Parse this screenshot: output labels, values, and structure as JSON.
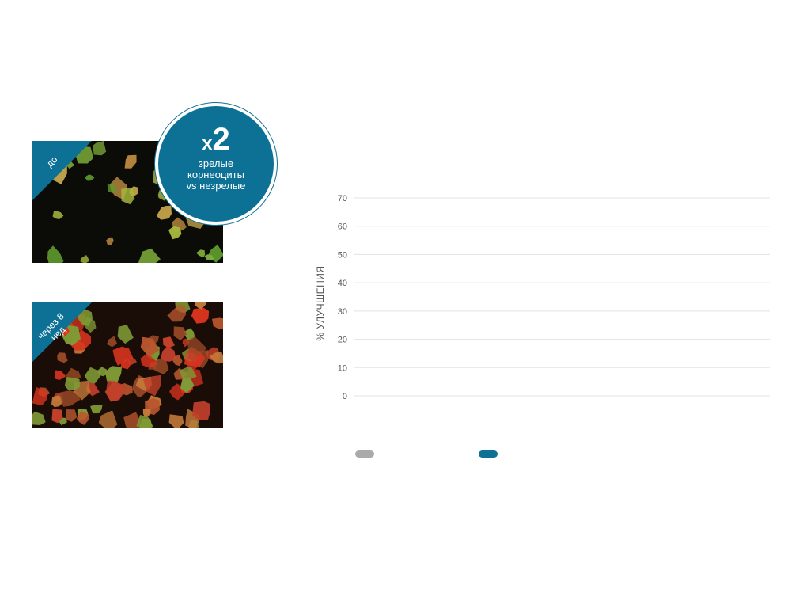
{
  "colors": {
    "accent": "#0d7196",
    "grid": "#e3e3e3",
    "tick_text": "#555555",
    "legend_grey": "#aaaaaa"
  },
  "micrographs": [
    {
      "corner_label": "до"
    },
    {
      "corner_label": "через 8 нед"
    }
  ],
  "badge": {
    "multiplier_prefix": "x",
    "multiplier_value": "2",
    "line1": "зрелые",
    "line2": "корнеоциты",
    "line3": "vs незрелые"
  },
  "chart_data": {
    "type": "bar",
    "title": "",
    "xlabel": "",
    "ylabel": "% УЛУЧШЕНИЯ",
    "ylim": [
      0,
      70
    ],
    "yticks": [
      0,
      10,
      20,
      30,
      40,
      50,
      60,
      70
    ],
    "grid": true,
    "categories": [],
    "series": [
      {
        "color": "#aaaaaa",
        "values": []
      },
      {
        "color": "#0d7196",
        "values": []
      }
    ],
    "legend_position": "bottom"
  }
}
